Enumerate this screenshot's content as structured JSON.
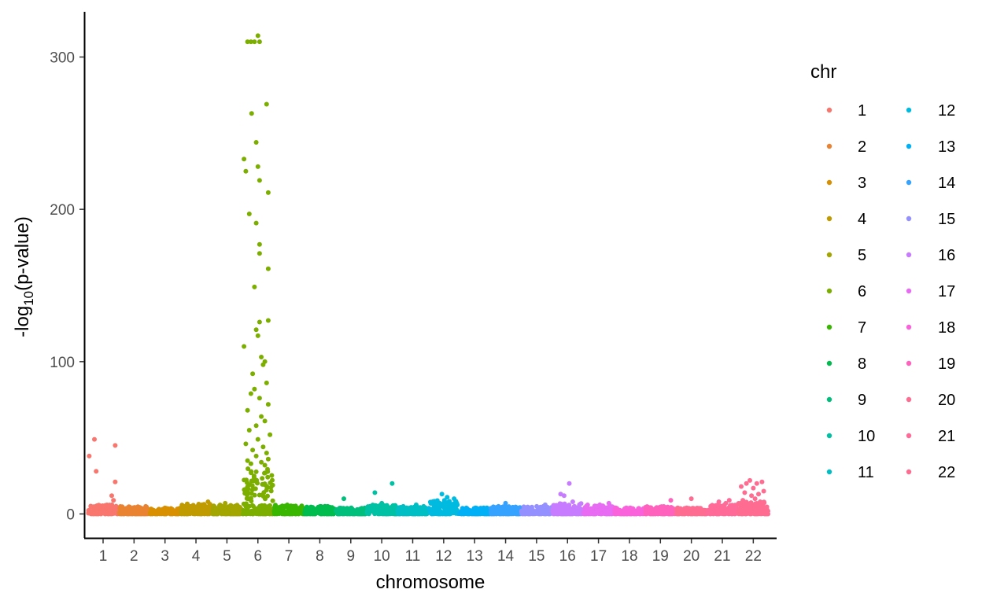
{
  "chart_data": {
    "type": "scatter",
    "subtype": "manhattan",
    "title": "",
    "xlabel": "chromosome",
    "ylabel_prefix": "-log",
    "ylabel_subscript": "10",
    "ylabel_suffix": "(p-value)",
    "ylim": [
      -15,
      330
    ],
    "yticks": [
      0,
      100,
      200,
      300
    ],
    "grid": false,
    "legend": {
      "title": "chr",
      "placement": "right",
      "columns": 2,
      "entries": [
        "1",
        "2",
        "3",
        "4",
        "5",
        "6",
        "7",
        "8",
        "9",
        "10",
        "11",
        "12",
        "13",
        "14",
        "15",
        "16",
        "17",
        "18",
        "19",
        "20",
        "21",
        "22"
      ]
    },
    "categories": [
      "1",
      "2",
      "3",
      "4",
      "5",
      "6",
      "7",
      "8",
      "9",
      "10",
      "11",
      "12",
      "13",
      "14",
      "15",
      "16",
      "17",
      "18",
      "19",
      "20",
      "21",
      "22"
    ],
    "colors": [
      "#F8766D",
      "#EA8331",
      "#D89000",
      "#C09B00",
      "#A3A500",
      "#7CAE00",
      "#39B600",
      "#00BB4E",
      "#00BF7D",
      "#00C1A3",
      "#00BFC4",
      "#00BAE0",
      "#00B0F6",
      "#35A2FF",
      "#9590FF",
      "#C77CFF",
      "#E76BF3",
      "#FA62DB",
      "#FF62BC",
      "#FF6C91",
      "#FF6A98",
      "#FF6C91"
    ],
    "series": [
      {
        "chr": "1",
        "max": 6,
        "outliers": [
          [
            -0.4,
            38
          ],
          [
            -0.25,
            49
          ],
          [
            -0.2,
            28
          ],
          [
            0.25,
            12
          ],
          [
            0.3,
            9
          ],
          [
            0.35,
            45
          ],
          [
            0.35,
            21
          ]
        ]
      },
      {
        "chr": "2",
        "max": 5,
        "outliers": []
      },
      {
        "chr": "3",
        "max": 4,
        "outliers": []
      },
      {
        "chr": "4",
        "max": 7,
        "outliers": [
          [
            0.35,
            8
          ]
        ]
      },
      {
        "chr": "5",
        "max": 6,
        "outliers": [
          [
            -0.05,
            7
          ]
        ]
      },
      {
        "chr": "6",
        "max": 30,
        "outliers": [
          [
            -0.3,
            310
          ],
          [
            -0.2,
            310
          ],
          [
            -0.1,
            310
          ],
          [
            0.0,
            314
          ],
          [
            0.05,
            310
          ],
          [
            -0.18,
            263
          ],
          [
            0.25,
            269
          ],
          [
            -0.05,
            244
          ],
          [
            -0.4,
            233
          ],
          [
            0.0,
            228
          ],
          [
            -0.35,
            225
          ],
          [
            0.05,
            219
          ],
          [
            0.3,
            211
          ],
          [
            -0.25,
            197
          ],
          [
            -0.05,
            191
          ],
          [
            0.05,
            177
          ],
          [
            0.05,
            171
          ],
          [
            0.3,
            161
          ],
          [
            -0.1,
            149
          ],
          [
            0.3,
            127
          ],
          [
            0.05,
            126
          ],
          [
            -0.05,
            121
          ],
          [
            0.0,
            117
          ],
          [
            -0.4,
            110
          ],
          [
            0.1,
            103
          ],
          [
            0.2,
            100
          ],
          [
            0.15,
            98
          ],
          [
            -0.15,
            92
          ],
          [
            0.25,
            86
          ],
          [
            -0.1,
            82
          ],
          [
            -0.2,
            79
          ],
          [
            0.05,
            76
          ],
          [
            0.3,
            72
          ],
          [
            -0.3,
            68
          ],
          [
            0.1,
            64
          ],
          [
            0.2,
            61
          ],
          [
            -0.05,
            58
          ],
          [
            -0.25,
            55
          ],
          [
            0.35,
            52
          ],
          [
            0.0,
            49
          ],
          [
            -0.35,
            46
          ],
          [
            0.15,
            44
          ],
          [
            -0.15,
            42
          ],
          [
            0.25,
            40
          ],
          [
            -0.05,
            38
          ],
          [
            0.3,
            36
          ],
          [
            -0.3,
            35
          ],
          [
            0.1,
            34
          ],
          [
            -0.2,
            33
          ],
          [
            0.2,
            32
          ]
        ]
      },
      {
        "chr": "7",
        "max": 6,
        "outliers": []
      },
      {
        "chr": "8",
        "max": 5,
        "outliers": []
      },
      {
        "chr": "9",
        "max": 4,
        "outliers": [
          [
            -0.2,
            10
          ]
        ]
      },
      {
        "chr": "10",
        "max": 6,
        "outliers": [
          [
            -0.2,
            14
          ],
          [
            0.3,
            20
          ],
          [
            0.0,
            7
          ]
        ]
      },
      {
        "chr": "11",
        "max": 5,
        "outliers": [
          [
            0.1,
            6
          ]
        ]
      },
      {
        "chr": "12",
        "max": 9,
        "outliers": [
          [
            -0.05,
            13
          ],
          [
            0.1,
            11
          ],
          [
            0.3,
            10
          ]
        ]
      },
      {
        "chr": "13",
        "max": 4,
        "outliers": []
      },
      {
        "chr": "14",
        "max": 5,
        "outliers": [
          [
            0.0,
            7
          ]
        ]
      },
      {
        "chr": "15",
        "max": 5,
        "outliers": [
          [
            0.25,
            6
          ]
        ]
      },
      {
        "chr": "16",
        "max": 7,
        "outliers": [
          [
            -0.2,
            13
          ],
          [
            -0.1,
            12
          ],
          [
            0.05,
            20
          ],
          [
            0.15,
            8
          ]
        ]
      },
      {
        "chr": "17",
        "max": 6,
        "outliers": [
          [
            0.3,
            7
          ]
        ]
      },
      {
        "chr": "18",
        "max": 4,
        "outliers": []
      },
      {
        "chr": "19",
        "max": 5,
        "outliers": [
          [
            0.3,
            9
          ]
        ]
      },
      {
        "chr": "20",
        "max": 4,
        "outliers": [
          [
            0.0,
            10
          ]
        ]
      },
      {
        "chr": "21",
        "max": 6,
        "outliers": [
          [
            -0.1,
            8
          ],
          [
            0.1,
            7
          ],
          [
            0.2,
            9
          ]
        ]
      },
      {
        "chr": "22",
        "max": 8,
        "outliers": [
          [
            -0.35,
            18
          ],
          [
            -0.2,
            20
          ],
          [
            -0.1,
            22
          ],
          [
            0.0,
            17
          ],
          [
            0.1,
            20
          ],
          [
            0.25,
            21
          ],
          [
            -0.25,
            14
          ],
          [
            -0.05,
            12
          ],
          [
            0.15,
            13
          ],
          [
            0.3,
            15
          ],
          [
            0.05,
            10
          ],
          [
            -0.3,
            9
          ],
          [
            0.2,
            8
          ]
        ]
      }
    ]
  }
}
